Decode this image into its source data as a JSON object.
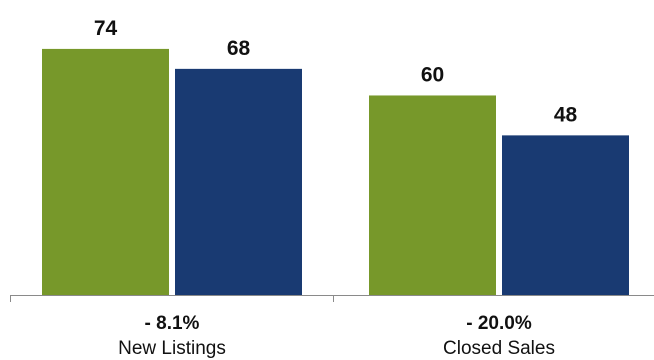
{
  "chart_data": {
    "type": "bar",
    "categories": [
      "New Listings",
      "Closed Sales"
    ],
    "changes": [
      "- 8.1%",
      "- 20.0%"
    ],
    "series": [
      {
        "color": "#77982a",
        "values": [
          74,
          60
        ]
      },
      {
        "color": "#193a72",
        "values": [
          68,
          48
        ]
      }
    ],
    "ylim": [
      0,
      86
    ],
    "grid": false,
    "axis_color": "#8a8a8a"
  }
}
